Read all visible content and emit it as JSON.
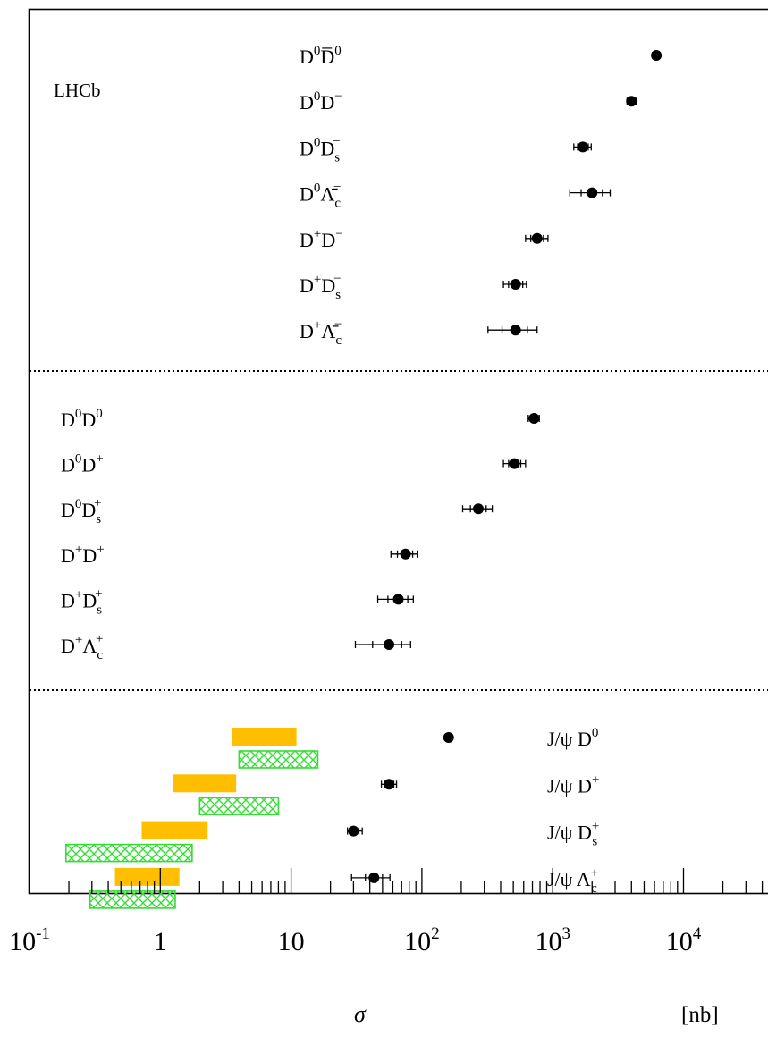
{
  "chart_data": {
    "type": "scatter",
    "title": "",
    "annotation": "LHCb",
    "xlabel": "σ",
    "xunit": "[nb]",
    "xscale": "log",
    "xlim": [
      0.1,
      50000
    ],
    "x_ticks": [
      {
        "value": 0.1,
        "base": "10",
        "exp": "-1"
      },
      {
        "value": 1,
        "base": "1",
        "exp": ""
      },
      {
        "value": 10,
        "base": "10",
        "exp": ""
      },
      {
        "value": 100,
        "base": "10",
        "exp": "2"
      },
      {
        "value": 1000,
        "base": "10",
        "exp": "3"
      },
      {
        "value": 10000,
        "base": "10",
        "exp": "4"
      }
    ],
    "groups": [
      {
        "name": "DDbar",
        "label_side": "middle",
        "points": [
          {
            "label": "D⁰D̅⁰",
            "main": "D",
            "sup": "0",
            "main2": "D̅",
            "sup2": "0",
            "sub2": "",
            "value": 6200,
            "stat": [
              5900,
              6500
            ],
            "tot": [
              5800,
              6600
            ]
          },
          {
            "label": "D⁰D⁻",
            "main": "D",
            "sup": "0",
            "main2": "D",
            "sup2": "−",
            "sub2": "",
            "value": 4000,
            "stat": [
              3800,
              4200
            ],
            "tot": [
              3700,
              4350
            ]
          },
          {
            "label": "D⁰Ds⁻",
            "main": "D",
            "sup": "0",
            "main2": "D",
            "sup2": "−",
            "sub2": "s",
            "value": 1700,
            "stat": [
              1550,
              1870
            ],
            "tot": [
              1450,
              1970
            ]
          },
          {
            "label": "D⁰Λ̅c⁻",
            "main": "D",
            "sup": "0",
            "main2": "Λ̄",
            "sup2": "−",
            "sub2": "c",
            "value": 2000,
            "stat": [
              1650,
              2400
            ],
            "tot": [
              1350,
              2750
            ]
          },
          {
            "label": "D⁺D⁻",
            "main": "D",
            "sup": "+",
            "main2": "D",
            "sup2": "−",
            "sub2": "",
            "value": 760,
            "stat": [
              680,
              850
            ],
            "tot": [
              620,
              920
            ]
          },
          {
            "label": "D⁺Ds⁻",
            "main": "D",
            "sup": "+",
            "main2": "D",
            "sup2": "−",
            "sub2": "s",
            "value": 520,
            "stat": [
              460,
              590
            ],
            "tot": [
              420,
              630
            ]
          },
          {
            "label": "D⁺Λ̅c⁻",
            "main": "D",
            "sup": "+",
            "main2": "Λ̄",
            "sup2": "−",
            "sub2": "c",
            "value": 520,
            "stat": [
              410,
              640
            ],
            "tot": [
              320,
              760
            ]
          }
        ]
      },
      {
        "name": "DD",
        "label_side": "left",
        "points": [
          {
            "label": "D⁰D⁰",
            "main": "D",
            "sup": "0",
            "main2": "D",
            "sup2": "0",
            "sub2": "",
            "value": 720,
            "stat": [
              680,
              760
            ],
            "tot": [
              650,
              790
            ]
          },
          {
            "label": "D⁰D⁺",
            "main": "D",
            "sup": "0",
            "main2": "D",
            "sup2": "+",
            "sub2": "",
            "value": 510,
            "stat": [
              460,
              570
            ],
            "tot": [
              420,
              620
            ]
          },
          {
            "label": "D⁰Ds⁺",
            "main": "D",
            "sup": "0",
            "main2": "D",
            "sup2": "+",
            "sub2": "s",
            "value": 270,
            "stat": [
              235,
              310
            ],
            "tot": [
              205,
              345
            ]
          },
          {
            "label": "D⁺D⁺",
            "main": "D",
            "sup": "+",
            "main2": "D",
            "sup2": "+",
            "sub2": "",
            "value": 75,
            "stat": [
              65,
              85
            ],
            "tot": [
              58,
              92
            ]
          },
          {
            "label": "D⁺Ds⁺",
            "main": "D",
            "sup": "+",
            "main2": "D",
            "sup2": "+",
            "sub2": "s",
            "value": 66,
            "stat": [
              55,
              78
            ],
            "tot": [
              46,
              86
            ]
          },
          {
            "label": "D⁺Λc⁺",
            "main": "D",
            "sup": "+",
            "main2": "Λ",
            "sup2": "+",
            "sub2": "c",
            "value": 56,
            "stat": [
              42,
              70
            ],
            "tot": [
              31,
              82
            ]
          }
        ]
      },
      {
        "name": "JpsiD",
        "label_side": "right",
        "points": [
          {
            "label": "J/ψ D⁰",
            "main": "J/ψ D",
            "sup": "0",
            "main2": "",
            "sup2": "",
            "sub2": "",
            "value": 160,
            "stat": [
              155,
              166
            ],
            "tot": [
              152,
              168
            ],
            "pred_orange": [
              3.5,
              11
            ],
            "pred_green": [
              4,
              16
            ]
          },
          {
            "label": "J/ψ D⁺",
            "main": "J/ψ D",
            "sup": "+",
            "main2": "",
            "sup2": "",
            "sub2": "",
            "value": 56,
            "stat": [
              52,
              61
            ],
            "tot": [
              49,
              64
            ],
            "pred_orange": [
              1.25,
              3.8
            ],
            "pred_green": [
              2,
              8
            ]
          },
          {
            "label": "J/ψ Ds⁺",
            "main": "J/ψ D",
            "sup": "+",
            "main2": "",
            "sup2": "",
            "sub2": "s",
            "value": 30,
            "stat": [
              28,
              33
            ],
            "tot": [
              27,
              35
            ],
            "pred_orange": [
              0.72,
              2.3
            ],
            "pred_green": [
              0.19,
              1.75
            ]
          },
          {
            "label": "J/ψ Λc⁺",
            "main": "J/ψ Λ",
            "sup": "+",
            "main2": "",
            "sup2": "",
            "sub2": "c",
            "value": 43,
            "stat": [
              37,
              50
            ],
            "tot": [
              29,
              57
            ],
            "pred_orange": [
              0.45,
              1.4
            ],
            "pred_green": [
              0.29,
              1.3
            ]
          }
        ]
      }
    ],
    "colors": {
      "orange": "#ffbf00",
      "green": "#33dd33",
      "marker": "#000000"
    }
  }
}
